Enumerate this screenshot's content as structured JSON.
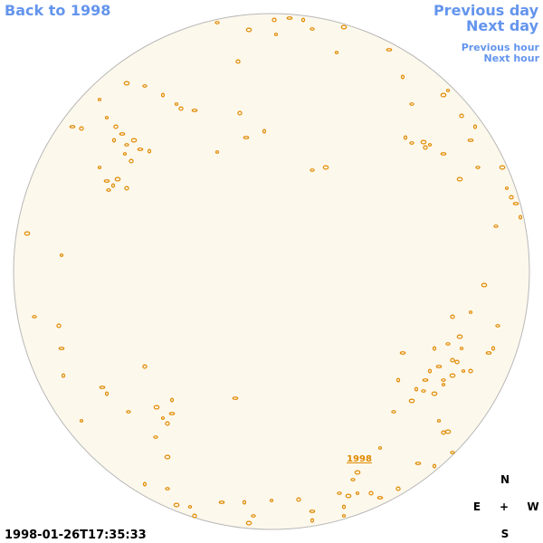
{
  "navigation": {
    "back": "Back to 1998",
    "previous_day": "Previous day",
    "next_day": "Next day",
    "previous_hour": "Previous hour",
    "next_hour": "Next hour"
  },
  "image": {
    "label": "1998",
    "timestamp": "1998-01-26T17:35:33"
  },
  "compass": {
    "north": "N",
    "east": "E",
    "center": "+",
    "west": "W",
    "south": "S"
  }
}
